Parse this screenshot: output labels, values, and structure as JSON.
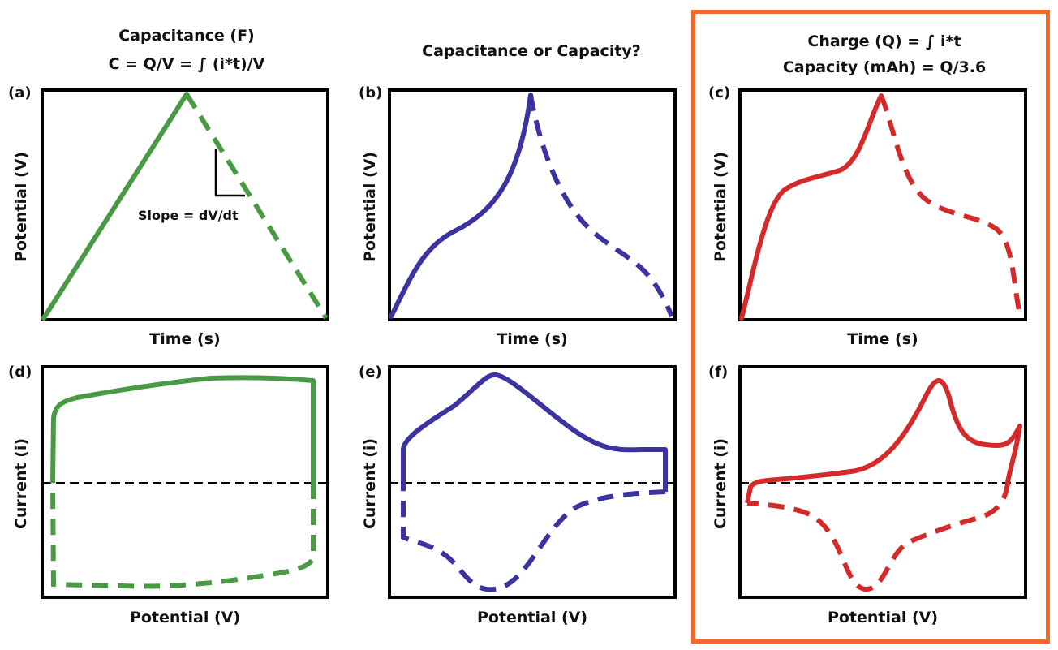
{
  "titles": {
    "col1_line1": "Capacitance (F)",
    "col1_line2": "C = Q/V = ∫ (i*t)/V",
    "col2": "Capacitance or Capacity?",
    "col3_line1": "Charge (Q) = ∫ i*t",
    "col3_line2": "Capacity (mAh) = Q/3.6"
  },
  "panels": [
    {
      "label": "(a)",
      "xlabel": "Time (s)",
      "ylabel": "Potential (V)"
    },
    {
      "label": "(b)",
      "xlabel": "Time (s)",
      "ylabel": "Potential (V)"
    },
    {
      "label": "(c)",
      "xlabel": "Time (s)",
      "ylabel": "Potential (V)"
    },
    {
      "label": "(d)",
      "xlabel": "Potential (V)",
      "ylabel": "Current (i)"
    },
    {
      "label": "(e)",
      "xlabel": "Potential (V)",
      "ylabel": "Current (i)"
    },
    {
      "label": "(f)",
      "xlabel": "Potential (V)",
      "ylabel": "Current (i)"
    }
  ],
  "annotation": {
    "slope": "Slope = dV/dt"
  },
  "colors": {
    "green": "#4a9a45",
    "blue": "#3a33a0",
    "red": "#d42a2a",
    "highlight": "#ef6a2a"
  }
}
